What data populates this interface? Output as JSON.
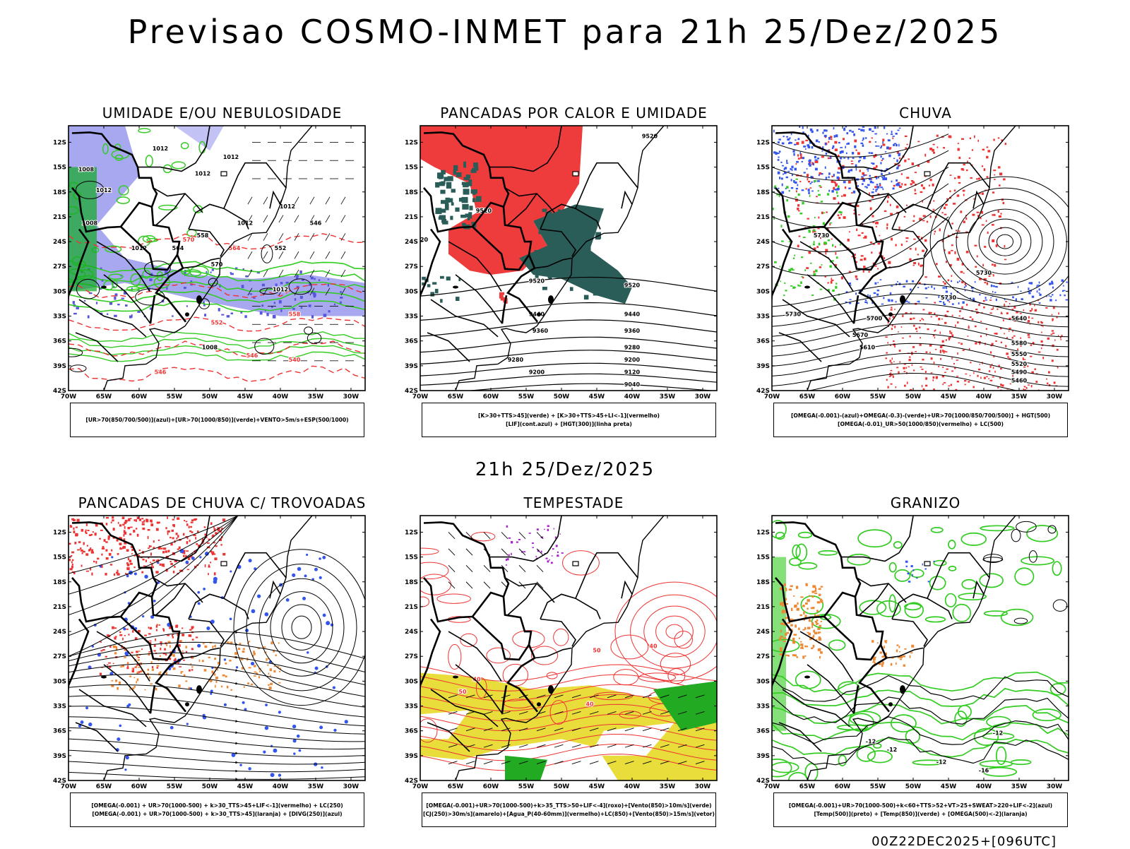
{
  "title": "Previsao COSMO-INMET  para 21h 25/Dez/2025",
  "mid_title": "21h 25/Dez/2025",
  "footer": "00Z22DEC2025+[096UTC]",
  "axes": {
    "lat_labels": [
      "12S",
      "15S",
      "18S",
      "21S",
      "24S",
      "27S",
      "30S",
      "33S",
      "36S",
      "39S",
      "42S"
    ],
    "lon_labels": [
      "70W",
      "65W",
      "60W",
      "55W",
      "50W",
      "45W",
      "40W",
      "35W",
      "30W"
    ]
  },
  "colors": {
    "red": "#ee3333",
    "green": "#33cc22",
    "blue": "#3355ee",
    "lavender": "#9999ee",
    "teal": "#2a5c58",
    "yellow": "#e8dd3a",
    "orange": "#ee8833",
    "purple": "#aa22cc"
  },
  "panels": [
    {
      "id": "umidade",
      "title": "UMIDADE E/OU NEBULOSIDADE",
      "legend": [
        "[UR>70(850/700/500)](azul)+[UR>70(1000/850)](verde)+VENTO>5m/s+ESP(500/1000)"
      ],
      "contour_labels": [
        "1012",
        "1012",
        "1008",
        "1012",
        "1008",
        "1012",
        "1012",
        "1012",
        "1012",
        "1012",
        "570",
        "564",
        "558",
        "552",
        "546",
        "1008"
      ]
    },
    {
      "id": "pancadas-calor",
      "title": "PANCADAS POR CALOR E UMIDADE",
      "legend": [
        "[K>30+TTS>45](verde) + [K>30+TTS>45+LI<-1](vermelho)",
        "[LIF](cont.azul) + [HGT(300)](linha preta)"
      ],
      "contour_labels": [
        "9520",
        "9520",
        "9520",
        "9520",
        "9520",
        "9440",
        "9440",
        "9360",
        "9360",
        "9280",
        "9280",
        "9200",
        "9200",
        "9120",
        "9040"
      ]
    },
    {
      "id": "chuva",
      "title": "CHUVA",
      "legend": [
        "[OMEGA(-0.001)-(azul)+OMEGA(-0.3)-(verde)+UR>70(1000/850/700/500)] + HGT(500)",
        "[OMEGA(-0.01)_UR>50(1000/850)(vermelho) + LC(500)"
      ],
      "contour_labels": [
        "5730",
        "5730",
        "5730",
        "5730",
        "5700",
        "5670",
        "5640",
        "5610",
        "5580",
        "5550",
        "5520",
        "5490",
        "5460"
      ]
    },
    {
      "id": "trovoadas",
      "title": "PANCADAS DE CHUVA C/ TROVOADAS",
      "legend": [
        "[OMEGA(-0.001) + UR>70(1000-500) + k>30_TTS>45+LIF<-1](vermelho) + LC(250)",
        "[OMEGA(-0.001) + UR>70(1000-500) + k>30_TTS>45](laranja) + [DIVG(250)](azul)"
      ]
    },
    {
      "id": "tempestade",
      "title": "TEMPESTADE",
      "legend": [
        "[OMEGA(-0.001)+UR>70(1000-500)+k>35_TTS>50+LIF<-4](roxo)+[Vento(850)>10m/s](verde)",
        "[CJ(250)>30m/s](amarelo)+[Agua_P(40-60mm)](vermelho)+LC(850)+[Vento(850)>15m/s](vetor)"
      ],
      "contour_labels": [
        "40",
        "50",
        "40",
        "50",
        "40"
      ]
    },
    {
      "id": "granizo",
      "title": "GRANIZO",
      "legend": [
        "[OMEGA(-0.001)+UR>70(1000-500)+k<60+TTS>52+VT>25+SWEAT>220+LIF<-2](azul)",
        "[Temp(500)](preto) + [Temp(850)](verde) + [OMEGA(500)<-2](laranja)"
      ],
      "contour_labels": [
        "-12",
        "-12",
        "-12",
        "-12",
        "-16"
      ]
    }
  ]
}
